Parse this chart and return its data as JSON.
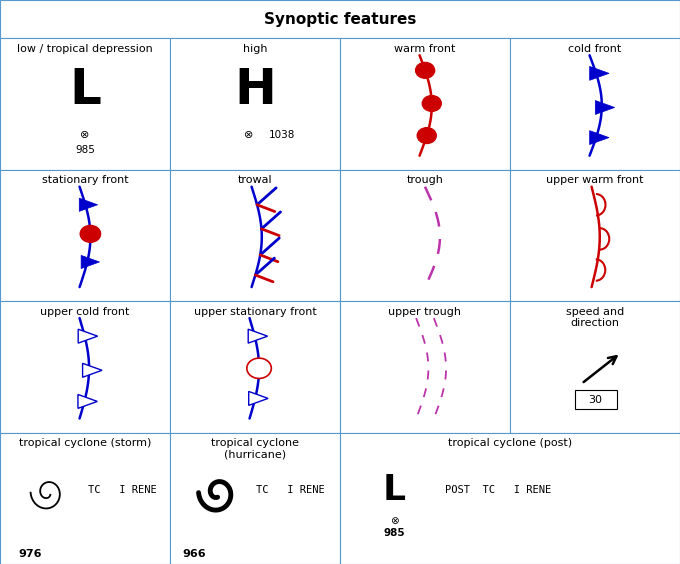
{
  "title": "Synoptic features",
  "title_fontsize": 11,
  "bg_color": "#ffffff",
  "grid_color": "#5599cc",
  "label_color": "#000000",
  "label_fontsize": 8,
  "fig_width": 6.8,
  "fig_height": 5.64,
  "cell_labels": [
    [
      "low / tropical depression",
      "high",
      "warm front",
      "cold front"
    ],
    [
      "stationary front",
      "trowal",
      "trough",
      "upper warm front"
    ],
    [
      "upper cold front",
      "upper stationary front",
      "upper trough",
      "speed and\ndirection"
    ],
    [
      "tropical cyclone (storm)",
      "tropical cyclone\n(hurricane)",
      "tropical cyclone (post)",
      ""
    ]
  ],
  "blue": "#0000cc",
  "red": "#cc0000",
  "magenta": "#bb33aa",
  "black": "#000000"
}
